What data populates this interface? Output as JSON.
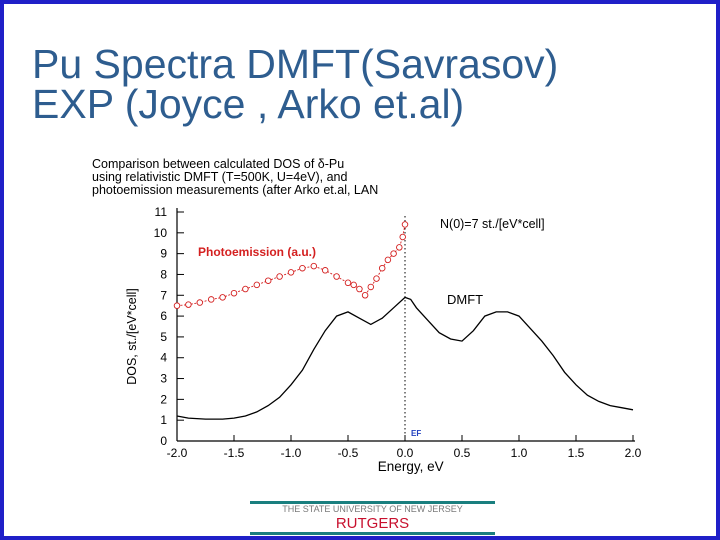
{
  "slide": {
    "title_line1": "Pu Spectra DMFT(Savrasov)",
    "title_line2": "EXP (Joyce , Arko et.al)",
    "footer_university": "THE STATE UNIVERSITY OF NEW JERSEY",
    "footer_brand": "RUTGERS",
    "frame_color": "#1f1fc8",
    "title_color": "#2e5d8f",
    "brand_color": "#c8102e"
  },
  "chart_data": {
    "type": "line",
    "title_lines": [
      "Comparison between calculated DOS of δ-Pu",
      "using relativistic DMFT (T=500K, U=4eV), and",
      "photoemission measurements (after Arko et.al, LAN"
    ],
    "xlabel": "Energy, eV",
    "ylabel": "DOS, st./[eV*cell]",
    "xlim": [
      -2.0,
      2.0
    ],
    "ylim": [
      0,
      11
    ],
    "x_ticks": [
      "-2.0",
      "-1.5",
      "-1.0",
      "-0.5",
      "0.0",
      "0.5",
      "1.0",
      "1.5",
      "2.0"
    ],
    "y_ticks": [
      "0",
      "1",
      "2",
      "3",
      "4",
      "5",
      "6",
      "7",
      "8",
      "9",
      "10",
      "11"
    ],
    "fermi_label": "EF",
    "annotation": "N(0)=7 st./[eV*cell]",
    "series": [
      {
        "name": "DMFT",
        "color": "#000000",
        "x": [
          -2.0,
          -1.9,
          -1.75,
          -1.6,
          -1.5,
          -1.4,
          -1.3,
          -1.2,
          -1.1,
          -1.0,
          -0.9,
          -0.8,
          -0.7,
          -0.6,
          -0.5,
          -0.4,
          -0.3,
          -0.2,
          -0.1,
          0.0,
          0.05,
          0.1,
          0.2,
          0.3,
          0.4,
          0.5,
          0.6,
          0.7,
          0.8,
          0.9,
          1.0,
          1.1,
          1.2,
          1.3,
          1.4,
          1.5,
          1.6,
          1.7,
          1.8,
          1.9,
          2.0
        ],
        "y": [
          1.2,
          1.1,
          1.05,
          1.05,
          1.1,
          1.2,
          1.4,
          1.7,
          2.1,
          2.7,
          3.4,
          4.4,
          5.3,
          6.0,
          6.2,
          5.9,
          5.6,
          5.9,
          6.4,
          6.9,
          6.8,
          6.4,
          5.8,
          5.2,
          4.9,
          4.8,
          5.3,
          6.0,
          6.2,
          6.2,
          6.0,
          5.4,
          4.8,
          4.1,
          3.3,
          2.7,
          2.2,
          1.9,
          1.7,
          1.6,
          1.5
        ]
      },
      {
        "name": "Photoemission (a.u.)",
        "color": "#d42020",
        "x": [
          -2.0,
          -1.9,
          -1.8,
          -1.7,
          -1.6,
          -1.5,
          -1.4,
          -1.3,
          -1.2,
          -1.1,
          -1.0,
          -0.9,
          -0.8,
          -0.7,
          -0.6,
          -0.5,
          -0.45,
          -0.4,
          -0.35,
          -0.3,
          -0.25,
          -0.2,
          -0.15,
          -0.1,
          -0.05,
          -0.02,
          0.0
        ],
        "y": [
          6.5,
          6.55,
          6.65,
          6.8,
          6.9,
          7.1,
          7.3,
          7.5,
          7.7,
          7.9,
          8.1,
          8.3,
          8.4,
          8.2,
          7.9,
          7.6,
          7.5,
          7.3,
          7.0,
          7.4,
          7.8,
          8.3,
          8.7,
          9.0,
          9.3,
          9.8,
          10.4
        ]
      }
    ]
  }
}
